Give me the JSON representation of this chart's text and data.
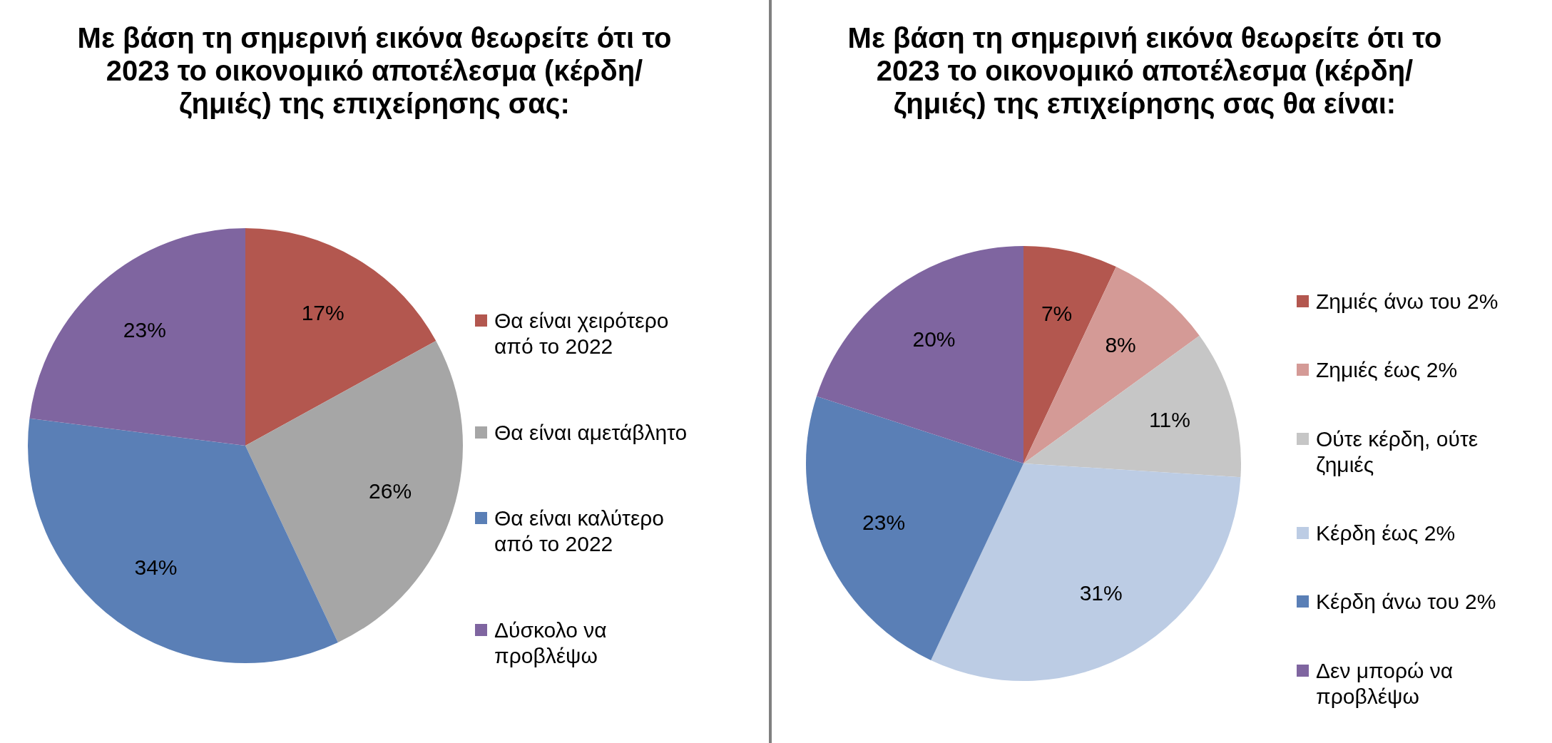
{
  "chart_data": [
    {
      "type": "pie",
      "title": "Με βάση τη σημερινή εικόνα θεωρείτε ότι το 2023 το οικονομικό αποτέλεσμα (κέρδη/ζημιές) της επιχείρησης σας:",
      "categories": [
        "Θα είναι χειρότερο από το 2022",
        "Θα είναι αμετάβλητο",
        "Θα είναι καλύτερο από το 2022",
        "Δύσκολο να προβλέψω"
      ],
      "values": [
        17,
        26,
        34,
        23
      ],
      "colors": [
        "#b3574f",
        "#a6a6a6",
        "#5a7fb6",
        "#7f65a0"
      ],
      "value_labels": [
        "17%",
        "26%",
        "34%",
        "23%"
      ],
      "legend": "right"
    },
    {
      "type": "pie",
      "title": "Με βάση τη σημερινή εικόνα θεωρείτε ότι το 2023 το οικονομικό αποτέλεσμα (κέρδη/ζημιές) της επιχείρησης σας θα είναι:",
      "categories": [
        "Ζημιές άνω του 2%",
        "Ζημιές έως 2%",
        "Ούτε κέρδη, ούτε ζημιές",
        "Κέρδη έως 2%",
        "Κέρδη άνω του 2%",
        "Δεν μπορώ να προβλέψω"
      ],
      "values": [
        7,
        8,
        11,
        31,
        23,
        20
      ],
      "colors": [
        "#b3574f",
        "#d49a96",
        "#c6c6c6",
        "#bccce4",
        "#5a7fb6",
        "#7f65a0"
      ],
      "value_labels": [
        "7%",
        "8%",
        "11%",
        "31%",
        "23%",
        "20%"
      ],
      "legend": "right"
    }
  ]
}
